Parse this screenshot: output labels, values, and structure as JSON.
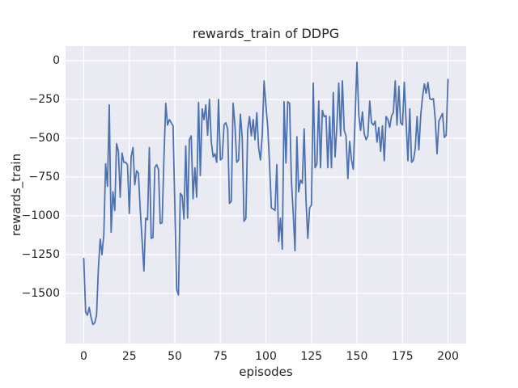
{
  "figure": {
    "title": "rewards_train of DDPG",
    "xlabel": "episodes",
    "ylabel": "rewards_train"
  },
  "colors": {
    "figure_background": "#ffffff",
    "axes_background": "#eaeaf2",
    "grid": "#ffffff",
    "line": "#4c72b0",
    "text": "#262626"
  },
  "chart_data": {
    "type": "line",
    "title": "rewards_train of DDPG",
    "xlabel": "episodes",
    "ylabel": "rewards_train",
    "grid": true,
    "legend": "none",
    "xlim": [
      -10,
      210
    ],
    "ylim": [
      -1823,
      94
    ],
    "x_ticks": [
      0,
      25,
      50,
      75,
      100,
      125,
      150,
      175,
      200
    ],
    "x_tick_labels": [
      "0",
      "25",
      "50",
      "75",
      "100",
      "125",
      "150",
      "175",
      "200"
    ],
    "y_ticks": [
      0,
      -250,
      -500,
      -750,
      -1000,
      -1250,
      -1500
    ],
    "y_tick_labels": [
      "0",
      "−250",
      "−500",
      "−750",
      "−1000",
      "−1250",
      "−1500"
    ],
    "series": [
      {
        "name": "rewards_train",
        "color": "#4c72b0",
        "x_start": 0,
        "x_step": 1,
        "y": [
          -1275,
          -1620,
          -1640,
          -1590,
          -1655,
          -1700,
          -1690,
          -1640,
          -1345,
          -1150,
          -1250,
          -1120,
          -665,
          -810,
          -285,
          -1105,
          -845,
          -965,
          -535,
          -585,
          -880,
          -595,
          -655,
          -655,
          -670,
          -985,
          -620,
          -560,
          -800,
          -710,
          -725,
          -965,
          -1150,
          -1355,
          -1015,
          -1025,
          -560,
          -1145,
          -1140,
          -690,
          -670,
          -700,
          -1050,
          -1045,
          -640,
          -275,
          -415,
          -380,
          -400,
          -420,
          -930,
          -1475,
          -1510,
          -855,
          -870,
          -1020,
          -550,
          -1015,
          -510,
          -485,
          -890,
          -690,
          -880,
          -270,
          -740,
          -310,
          -380,
          -285,
          -480,
          -250,
          -520,
          -620,
          -600,
          -655,
          -250,
          -640,
          -630,
          -415,
          -400,
          -440,
          -920,
          -905,
          -275,
          -415,
          -655,
          -640,
          -345,
          -500,
          -1035,
          -1015,
          -450,
          -360,
          -485,
          -380,
          -510,
          -335,
          -560,
          -640,
          -480,
          -130,
          -285,
          -430,
          -660,
          -950,
          -955,
          -965,
          -670,
          -1165,
          -1015,
          -1215,
          -265,
          -660,
          -265,
          -275,
          -770,
          -985,
          -1225,
          -490,
          -845,
          -770,
          -790,
          -440,
          -890,
          -1145,
          -950,
          -930,
          -145,
          -690,
          -665,
          -260,
          -690,
          -320,
          -360,
          -355,
          -690,
          -360,
          -690,
          -205,
          -620,
          -415,
          -145,
          -485,
          -130,
          -450,
          -485,
          -760,
          -520,
          -640,
          -700,
          -360,
          -10,
          -350,
          -450,
          -330,
          -470,
          -510,
          -485,
          -260,
          -400,
          -415,
          -390,
          -525,
          -430,
          -585,
          -420,
          -645,
          -360,
          -380,
          -430,
          -355,
          -335,
          -130,
          -415,
          -165,
          -400,
          -415,
          -140,
          -400,
          -645,
          -310,
          -655,
          -640,
          -570,
          -360,
          -575,
          -355,
          -235,
          -150,
          -210,
          -140,
          -245,
          -250,
          -245,
          -380,
          -600,
          -390,
          -365,
          -340,
          -495,
          -480,
          -120
        ]
      }
    ]
  }
}
